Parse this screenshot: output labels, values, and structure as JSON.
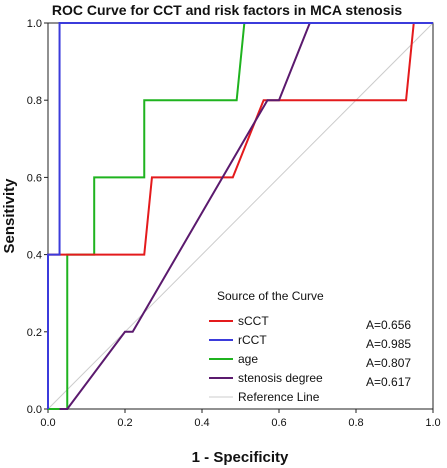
{
  "chart_data": {
    "type": "line",
    "title": "ROC Curve for CCT and risk factors in MCA stenosis",
    "xlabel": "1 - Specificity",
    "ylabel": "Sensitivity",
    "xlim": [
      0.0,
      1.0
    ],
    "ylim": [
      0.0,
      1.0
    ],
    "x_ticks": [
      "0.0",
      "0.2",
      "0.4",
      "0.6",
      "0.8",
      "1.0"
    ],
    "y_ticks": [
      "0.0",
      "0.2",
      "0.4",
      "0.6",
      "0.8",
      "1.0"
    ],
    "grid": false,
    "legend": {
      "title": "Source of the Curve",
      "placement": "bottom-right"
    },
    "series": [
      {
        "name": "sCCT",
        "color": "#e41a1c",
        "auc_label": "A=0.656",
        "points": [
          [
            0.0,
            0.0
          ],
          [
            0.0,
            0.4
          ],
          [
            0.25,
            0.4
          ],
          [
            0.27,
            0.6
          ],
          [
            0.48,
            0.6
          ],
          [
            0.56,
            0.8
          ],
          [
            0.93,
            0.8
          ],
          [
            0.95,
            1.0
          ],
          [
            1.0,
            1.0
          ]
        ]
      },
      {
        "name": "rCCT",
        "color": "#3b3bdb",
        "auc_label": "A=0.985",
        "points": [
          [
            0.0,
            0.0
          ],
          [
            0.0,
            0.4
          ],
          [
            0.03,
            0.4
          ],
          [
            0.03,
            1.0
          ],
          [
            1.0,
            1.0
          ]
        ]
      },
      {
        "name": "age",
        "color": "#1fb31f",
        "auc_label": "A=0.807",
        "points": [
          [
            0.0,
            0.0
          ],
          [
            0.05,
            0.0
          ],
          [
            0.05,
            0.4
          ],
          [
            0.12,
            0.4
          ],
          [
            0.12,
            0.6
          ],
          [
            0.25,
            0.6
          ],
          [
            0.25,
            0.8
          ],
          [
            0.49,
            0.8
          ],
          [
            0.51,
            1.0
          ],
          [
            1.0,
            1.0
          ]
        ]
      },
      {
        "name": "stenosis degree",
        "color": "#5b1a6e",
        "auc_label": "A=0.617",
        "points": [
          [
            0.03,
            0.0
          ],
          [
            0.05,
            0.0
          ],
          [
            0.2,
            0.2
          ],
          [
            0.22,
            0.2
          ],
          [
            0.57,
            0.8
          ],
          [
            0.6,
            0.8
          ],
          [
            0.68,
            1.0
          ],
          [
            1.0,
            1.0
          ]
        ]
      },
      {
        "name": "Reference Line",
        "color": "#cccccc",
        "auc_label": "",
        "points": [
          [
            0.0,
            0.0
          ],
          [
            1.0,
            1.0
          ]
        ]
      }
    ]
  }
}
